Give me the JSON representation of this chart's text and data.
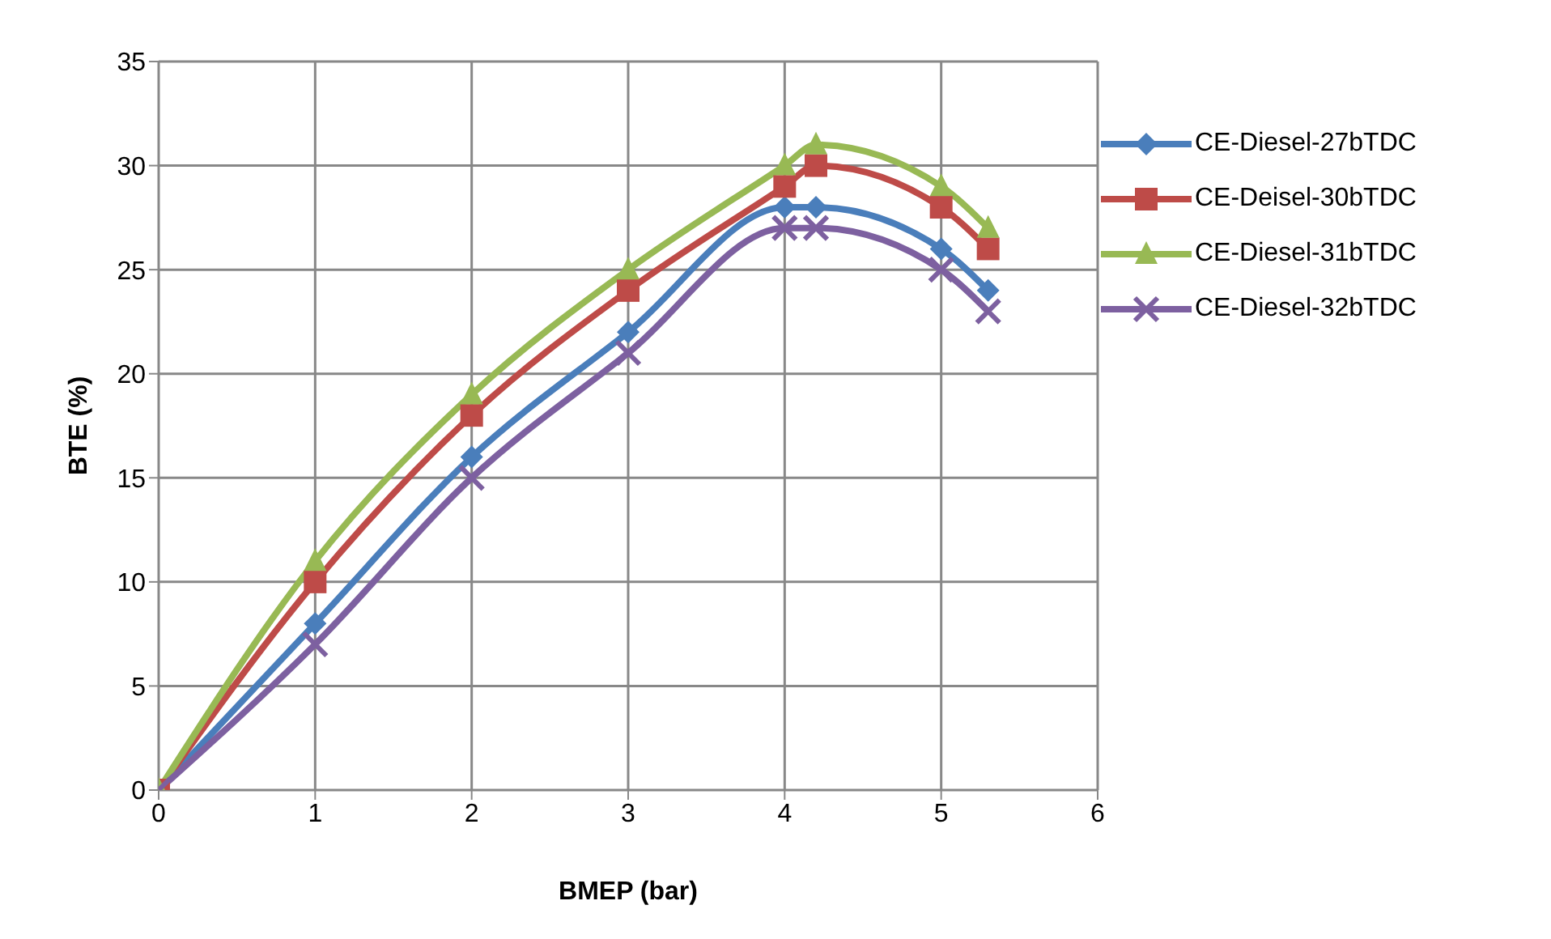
{
  "chart_data": {
    "type": "line",
    "xlabel": "BMEP (bar)",
    "ylabel": "BTE (%)",
    "x": [
      0,
      1,
      2,
      3,
      4,
      4.2,
      5,
      5.3
    ],
    "series": [
      {
        "name": "CE-Diesel-27bTDC",
        "color": "#4a7ebb",
        "marker": "diamond",
        "values": [
          0,
          8,
          16,
          22,
          28,
          28,
          26,
          24
        ]
      },
      {
        "name": "CE-Deisel-30bTDC",
        "color": "#be4b48",
        "marker": "square",
        "values": [
          0,
          10,
          18,
          24,
          29,
          30,
          28,
          26
        ]
      },
      {
        "name": "CE-Diesel-31bTDC",
        "color": "#98b954",
        "marker": "triangle",
        "values": [
          0,
          11,
          19,
          25,
          30,
          31,
          29,
          27
        ]
      },
      {
        "name": "CE-Diesel-32bTDC",
        "color": "#7d60a0",
        "marker": "cross",
        "values": [
          0,
          7,
          15,
          21,
          27,
          27,
          25,
          23
        ]
      }
    ],
    "xlim": [
      0,
      6
    ],
    "xticks": [
      0,
      1,
      2,
      3,
      4,
      5,
      6
    ],
    "ylim": [
      0,
      35
    ],
    "yticks": [
      0,
      5,
      10,
      15,
      20,
      25,
      30,
      35
    ],
    "grid": true,
    "legend": "right",
    "line_style": "solid"
  }
}
